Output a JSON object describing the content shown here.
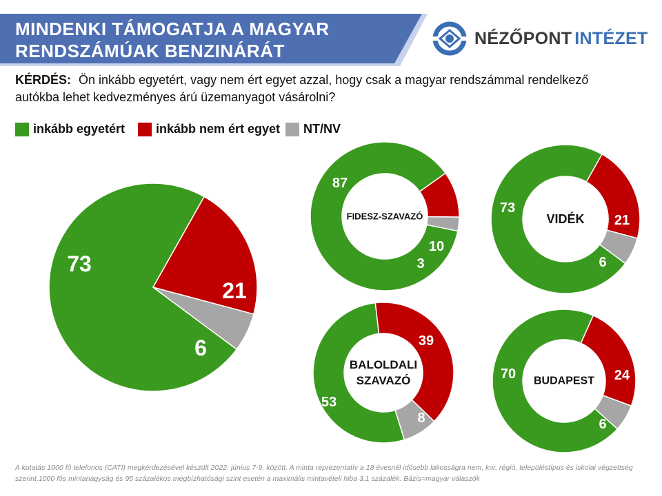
{
  "title": {
    "line1": "MINDENKI TÁMOGATJA A MAGYAR",
    "line2": "RENDSZÁMÚAK BENZINÁRÁT"
  },
  "logo": {
    "text_main": "NÉZŐPONT",
    "text_accent": "INTÉZET"
  },
  "question": {
    "label": "KÉRDÉS:",
    "text": "Ön inkább egyetért, vagy nem ért egyet azzal, hogy csak a magyar rendszámmal rendelkező autókba lehet kedvezményes árú üzemanyagot vásárolni?"
  },
  "legend": [
    {
      "label": "inkább egyetért",
      "color": "#3a9a1f"
    },
    {
      "label": "inkább nem ért egyet",
      "color": "#c00000"
    },
    {
      "label": "NT/NV",
      "color": "#a6a6a6"
    }
  ],
  "colors": {
    "banner": "#4f6fb3",
    "banner_accent": "#c7d3ec",
    "logo_blue": "#3b6fb5"
  },
  "chart_data": [
    {
      "type": "pie",
      "title": "",
      "categories": [
        "inkább egyetért",
        "inkább nem ért egyet",
        "NT/NV"
      ],
      "values": [
        73,
        21,
        6
      ]
    },
    {
      "type": "pie",
      "title": "FIDESZ-SZAVAZÓ",
      "categories": [
        "inkább egyetért",
        "inkább nem ért egyet",
        "NT/NV"
      ],
      "values": [
        87,
        10,
        3
      ]
    },
    {
      "type": "pie",
      "title": "VIDÉK",
      "categories": [
        "inkább egyetért",
        "inkább nem ért egyet",
        "NT/NV"
      ],
      "values": [
        73,
        21,
        6
      ]
    },
    {
      "type": "pie",
      "title": "BALOLDALI SZAVAZÓ",
      "categories": [
        "inkább egyetért",
        "inkább nem ért egyet",
        "NT/NV"
      ],
      "values": [
        53,
        39,
        8
      ]
    },
    {
      "type": "pie",
      "title": "BUDAPEST",
      "categories": [
        "inkább egyetért",
        "inkább nem ért egyet",
        "NT/NV"
      ],
      "values": [
        70,
        24,
        6
      ]
    }
  ],
  "footnote": "A kutatás 1000 fő telefonos (CATI) megkérdezésével készült 2022. június 7-9. között. A minta reprezentatív a 18 évesnél idősebb lakosságra nem, kor, régió, településtípus és iskolai végzettség szerint.1000 fős mintanagyság és 95 százalékos megbízhatósági szint esetén a maximális mintavételi hiba 3,1 százalék. Bázis=magyar válaszók"
}
